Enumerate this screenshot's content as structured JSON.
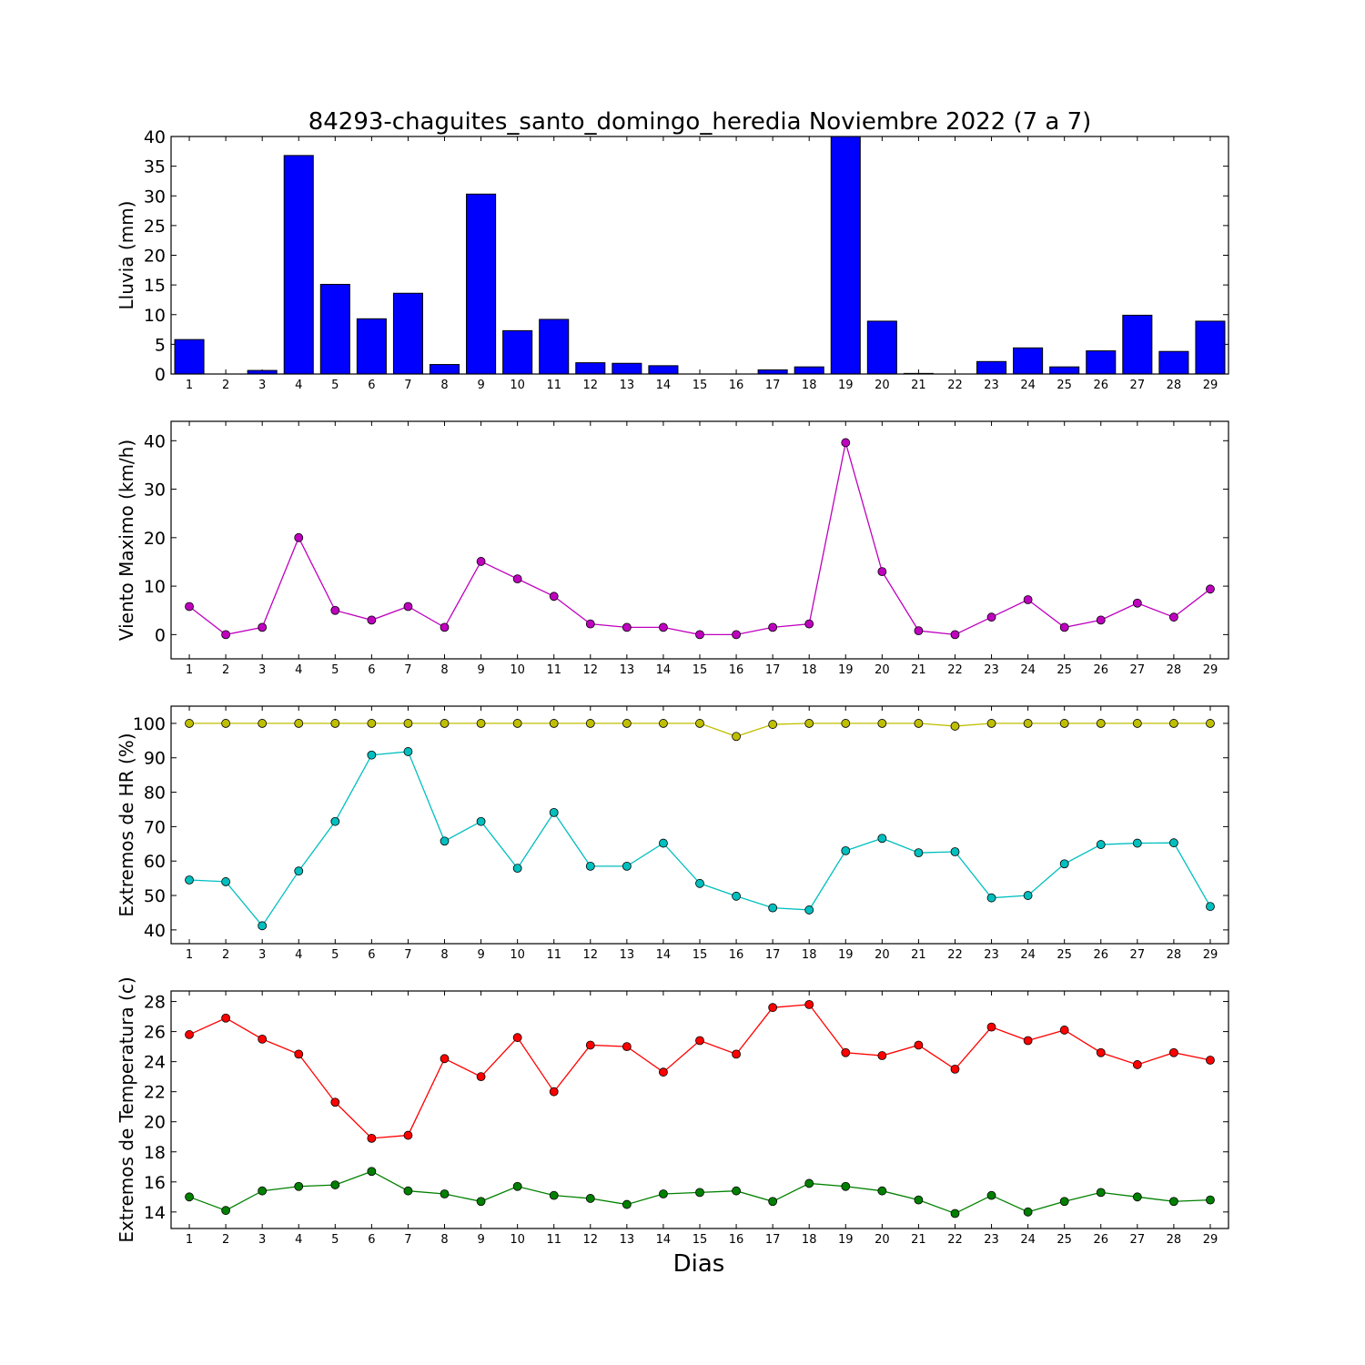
{
  "title": "84293-chaguites_santo_domingo_heredia Noviembre 2022  (7 a 7)",
  "xlabel": "Dias",
  "chart_data": [
    {
      "id": "lluvia",
      "type": "bar",
      "ylabel": "Lluvia (mm)",
      "ylim": [
        0,
        40
      ],
      "yticks": [
        0,
        5,
        10,
        15,
        20,
        25,
        30,
        35,
        40
      ],
      "categories": [
        "1",
        "2",
        "3",
        "4",
        "5",
        "6",
        "7",
        "8",
        "9",
        "10",
        "11",
        "12",
        "13",
        "14",
        "15",
        "16",
        "17",
        "18",
        "19",
        "20",
        "21",
        "22",
        "23",
        "24",
        "25",
        "26",
        "27",
        "28",
        "29"
      ],
      "series": [
        {
          "color": "#0000ff",
          "values": [
            5.8,
            0,
            0.6,
            36.8,
            15.1,
            9.3,
            13.6,
            1.6,
            30.3,
            7.3,
            9.2,
            1.9,
            1.8,
            1.4,
            0,
            0,
            0.7,
            1.2,
            40.0,
            8.9,
            0.1,
            0,
            2.1,
            4.4,
            1.2,
            3.9,
            9.9,
            3.8,
            8.9
          ]
        }
      ]
    },
    {
      "id": "viento",
      "type": "line",
      "ylabel": "Viento Maximo (km/h)",
      "ylim": [
        -5,
        44
      ],
      "yticks": [
        0,
        10,
        20,
        30,
        40
      ],
      "categories": [
        "1",
        "2",
        "3",
        "4",
        "5",
        "6",
        "7",
        "8",
        "9",
        "10",
        "11",
        "12",
        "13",
        "14",
        "15",
        "16",
        "17",
        "18",
        "19",
        "20",
        "21",
        "22",
        "23",
        "24",
        "25",
        "26",
        "27",
        "28",
        "29"
      ],
      "series": [
        {
          "color": "#bf00bf",
          "values": [
            5.8,
            0,
            1.5,
            20.0,
            5.0,
            3.0,
            5.8,
            1.5,
            15.1,
            11.5,
            7.9,
            2.2,
            1.5,
            1.5,
            0,
            0,
            1.5,
            2.2,
            39.6,
            13.0,
            0.8,
            0,
            3.6,
            7.2,
            1.5,
            3.0,
            6.5,
            3.6,
            9.4
          ]
        }
      ]
    },
    {
      "id": "hr",
      "type": "line",
      "ylabel": "Extremos de HR (%)",
      "ylim": [
        36,
        105
      ],
      "yticks": [
        40,
        50,
        60,
        70,
        80,
        90,
        100
      ],
      "categories": [
        "1",
        "2",
        "3",
        "4",
        "5",
        "6",
        "7",
        "8",
        "9",
        "10",
        "11",
        "12",
        "13",
        "14",
        "15",
        "16",
        "17",
        "18",
        "19",
        "20",
        "21",
        "22",
        "23",
        "24",
        "25",
        "26",
        "27",
        "28",
        "29"
      ],
      "series": [
        {
          "color": "#bfbf00",
          "values": [
            100,
            100,
            100,
            100,
            100,
            100,
            100,
            100,
            100,
            100,
            100,
            100,
            100,
            100,
            100,
            96.2,
            99.7,
            100,
            100,
            100,
            100,
            99.2,
            100,
            100,
            100,
            100,
            100,
            100,
            100
          ]
        },
        {
          "color": "#00bfbf",
          "values": [
            54.5,
            54.0,
            41.2,
            57.1,
            71.5,
            90.8,
            91.8,
            65.8,
            71.5,
            57.9,
            74.1,
            58.5,
            58.5,
            65.2,
            53.5,
            49.8,
            46.4,
            45.8,
            63.0,
            66.6,
            62.4,
            62.7,
            49.3,
            50.0,
            59.2,
            64.8,
            65.2,
            65.3,
            46.8
          ]
        }
      ]
    },
    {
      "id": "temp",
      "type": "line",
      "ylabel": "Extremos de Temperatura (c)",
      "ylim": [
        12.9,
        28.7
      ],
      "yticks": [
        14,
        16,
        18,
        20,
        22,
        24,
        26,
        28
      ],
      "categories": [
        "1",
        "2",
        "3",
        "4",
        "5",
        "6",
        "7",
        "8",
        "9",
        "10",
        "11",
        "12",
        "13",
        "14",
        "15",
        "16",
        "17",
        "18",
        "19",
        "20",
        "21",
        "22",
        "23",
        "24",
        "25",
        "26",
        "27",
        "28",
        "29"
      ],
      "series": [
        {
          "color": "#ff0000",
          "values": [
            25.8,
            26.9,
            25.5,
            24.5,
            21.3,
            18.9,
            19.1,
            24.2,
            23.0,
            25.6,
            22.0,
            25.1,
            25.0,
            23.3,
            25.4,
            24.5,
            27.6,
            27.8,
            24.6,
            24.4,
            25.1,
            23.5,
            26.3,
            25.4,
            26.1,
            24.6,
            23.8,
            24.6,
            24.1
          ]
        },
        {
          "color": "#008000",
          "values": [
            15.0,
            14.1,
            15.4,
            15.7,
            15.8,
            16.7,
            15.4,
            15.2,
            14.7,
            15.7,
            15.1,
            14.9,
            14.5,
            15.2,
            15.3,
            15.4,
            14.7,
            15.9,
            15.7,
            15.4,
            14.8,
            13.9,
            15.1,
            14.0,
            14.7,
            15.3,
            15.0,
            14.7,
            14.8
          ]
        }
      ]
    }
  ]
}
